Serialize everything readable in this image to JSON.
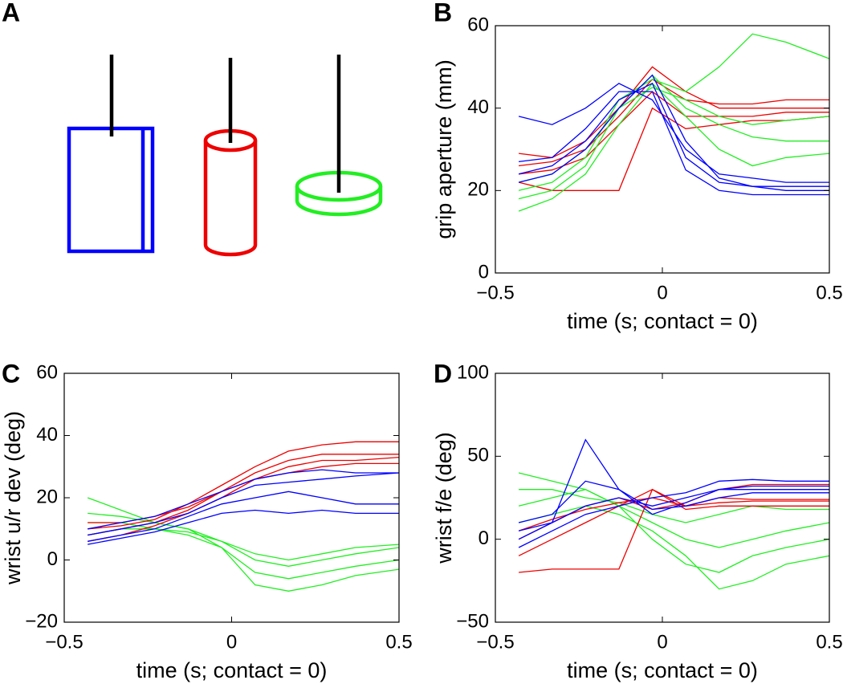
{
  "panel_a": {
    "label": "A"
  },
  "chart_data": [
    {
      "label": "B",
      "type": "line",
      "xlabel": "time (s; contact = 0)",
      "ylabel": "grip aperture (mm)",
      "x": [
        -0.43,
        -0.33,
        -0.23,
        -0.13,
        -0.03,
        0.07,
        0.17,
        0.27,
        0.37,
        0.5
      ],
      "xlim": [
        -0.5,
        0.5
      ],
      "ylim": [
        0,
        60
      ],
      "xticks": [
        {
          "value": -0.5,
          "label": "−0.5"
        },
        0,
        0.5
      ],
      "yticks": [
        0,
        20,
        40,
        60
      ],
      "series": [
        {
          "color": "#ee0000",
          "values": [
            26,
            27,
            30,
            38,
            47,
            42,
            41,
            41,
            42,
            42
          ]
        },
        {
          "color": "#ee0000",
          "values": [
            29,
            28,
            32,
            40,
            50,
            44,
            40,
            40,
            40,
            40
          ]
        },
        {
          "color": "#ee0000",
          "values": [
            24,
            25,
            28,
            36,
            44,
            38,
            38,
            38,
            39,
            39
          ]
        },
        {
          "color": "#ee0000",
          "values": [
            22,
            20,
            20,
            20,
            40,
            35,
            36,
            37,
            37,
            38
          ]
        },
        {
          "color": "#22ee22",
          "values": [
            18,
            20,
            26,
            40,
            48,
            40,
            36,
            33,
            32,
            32
          ]
        },
        {
          "color": "#22ee22",
          "values": [
            20,
            22,
            28,
            42,
            47,
            44,
            50,
            58,
            56,
            52
          ]
        },
        {
          "color": "#22ee22",
          "values": [
            15,
            18,
            24,
            36,
            46,
            38,
            30,
            26,
            28,
            29
          ]
        },
        {
          "color": "#22ee22",
          "values": [
            22,
            24,
            30,
            40,
            45,
            42,
            38,
            36,
            37,
            38
          ]
        },
        {
          "color": "#0000ff",
          "values": [
            24,
            26,
            32,
            42,
            46,
            28,
            22,
            21,
            20,
            20
          ]
        },
        {
          "color": "#0000ff",
          "values": [
            22,
            24,
            30,
            40,
            48,
            32,
            23,
            21,
            21,
            21
          ]
        },
        {
          "color": "#0000ff",
          "values": [
            27,
            28,
            35,
            44,
            44,
            25,
            20,
            19,
            19,
            19
          ]
        },
        {
          "color": "#0000ff",
          "values": [
            38,
            36,
            40,
            46,
            42,
            30,
            24,
            23,
            22,
            22
          ]
        }
      ]
    },
    {
      "label": "C",
      "type": "line",
      "xlabel": "time (s; contact = 0)",
      "ylabel": "wrist u/r dev (deg)",
      "x": [
        -0.43,
        -0.33,
        -0.23,
        -0.13,
        -0.03,
        0.07,
        0.17,
        0.27,
        0.37,
        0.5
      ],
      "xlim": [
        -0.5,
        0.5
      ],
      "ylim": [
        -20,
        60
      ],
      "xticks": [
        {
          "value": -0.5,
          "label": "−0.5"
        },
        0,
        0.5
      ],
      "yticks": [
        {
          "value": -20,
          "label": "−20"
        },
        0,
        20,
        40,
        60
      ],
      "series": [
        {
          "color": "#22ee22",
          "values": [
            12,
            12,
            10,
            8,
            4,
            -4,
            -6,
            -4,
            -2,
            0
          ]
        },
        {
          "color": "#22ee22",
          "values": [
            15,
            14,
            12,
            10,
            6,
            0,
            -2,
            0,
            2,
            4
          ]
        },
        {
          "color": "#22ee22",
          "values": [
            8,
            10,
            10,
            9,
            6,
            2,
            0,
            2,
            4,
            5
          ]
        },
        {
          "color": "#22ee22",
          "values": [
            20,
            16,
            12,
            10,
            4,
            -8,
            -10,
            -8,
            -5,
            -3
          ]
        },
        {
          "color": "#ee0000",
          "values": [
            8,
            10,
            12,
            16,
            22,
            28,
            32,
            34,
            34,
            34
          ]
        },
        {
          "color": "#ee0000",
          "values": [
            10,
            11,
            13,
            18,
            24,
            30,
            35,
            37,
            38,
            38
          ]
        },
        {
          "color": "#ee0000",
          "values": [
            6,
            8,
            11,
            15,
            20,
            26,
            30,
            32,
            32,
            33
          ]
        },
        {
          "color": "#ee0000",
          "values": [
            12,
            12,
            14,
            17,
            22,
            26,
            28,
            30,
            31,
            31
          ]
        },
        {
          "color": "#0000ff",
          "values": [
            8,
            10,
            12,
            15,
            20,
            24,
            25,
            26,
            27,
            28
          ]
        },
        {
          "color": "#0000ff",
          "values": [
            6,
            8,
            10,
            14,
            18,
            20,
            22,
            20,
            18,
            18
          ]
        },
        {
          "color": "#0000ff",
          "values": [
            10,
            12,
            14,
            18,
            22,
            26,
            28,
            29,
            28,
            28
          ]
        },
        {
          "color": "#0000ff",
          "values": [
            5,
            7,
            9,
            12,
            15,
            16,
            15,
            16,
            15,
            15
          ]
        }
      ]
    },
    {
      "label": "D",
      "type": "line",
      "xlabel": "time (s; contact = 0)",
      "ylabel": "wrist f/e (deg)",
      "x": [
        -0.43,
        -0.33,
        -0.23,
        -0.13,
        -0.03,
        0.07,
        0.17,
        0.27,
        0.37,
        0.5
      ],
      "xlim": [
        -0.5,
        0.5
      ],
      "ylim": [
        -50,
        100
      ],
      "xticks": [
        {
          "value": -0.5,
          "label": "−0.5"
        },
        0,
        0.5
      ],
      "yticks": [
        {
          "value": -50,
          "label": "−50"
        },
        0,
        50,
        100
      ],
      "series": [
        {
          "color": "#22ee22",
          "values": [
            10,
            15,
            20,
            15,
            5,
            -10,
            -30,
            -25,
            -15,
            -10
          ]
        },
        {
          "color": "#22ee22",
          "values": [
            20,
            25,
            30,
            20,
            10,
            0,
            -5,
            0,
            5,
            10
          ]
        },
        {
          "color": "#22ee22",
          "values": [
            30,
            30,
            25,
            22,
            15,
            10,
            15,
            20,
            18,
            18
          ]
        },
        {
          "color": "#22ee22",
          "values": [
            40,
            35,
            30,
            20,
            0,
            -15,
            -20,
            -10,
            -5,
            0
          ]
        },
        {
          "color": "#ee0000",
          "values": [
            -20,
            -18,
            -18,
            -18,
            30,
            20,
            25,
            24,
            24,
            24
          ]
        },
        {
          "color": "#ee0000",
          "values": [
            0,
            10,
            20,
            25,
            18,
            22,
            30,
            33,
            33,
            33
          ]
        },
        {
          "color": "#ee0000",
          "values": [
            5,
            12,
            18,
            22,
            25,
            20,
            22,
            23,
            23,
            23
          ]
        },
        {
          "color": "#ee0000",
          "values": [
            -10,
            0,
            10,
            20,
            30,
            18,
            20,
            20,
            20,
            20
          ]
        },
        {
          "color": "#0000ff",
          "values": [
            0,
            10,
            20,
            25,
            20,
            25,
            30,
            32,
            32,
            32
          ]
        },
        {
          "color": "#0000ff",
          "values": [
            10,
            15,
            35,
            30,
            18,
            20,
            25,
            28,
            28,
            28
          ]
        },
        {
          "color": "#0000ff",
          "values": [
            -5,
            5,
            15,
            20,
            25,
            28,
            35,
            36,
            35,
            35
          ]
        },
        {
          "color": "#0000ff",
          "values": [
            5,
            10,
            60,
            30,
            15,
            22,
            30,
            30,
            30,
            30
          ]
        }
      ]
    }
  ]
}
